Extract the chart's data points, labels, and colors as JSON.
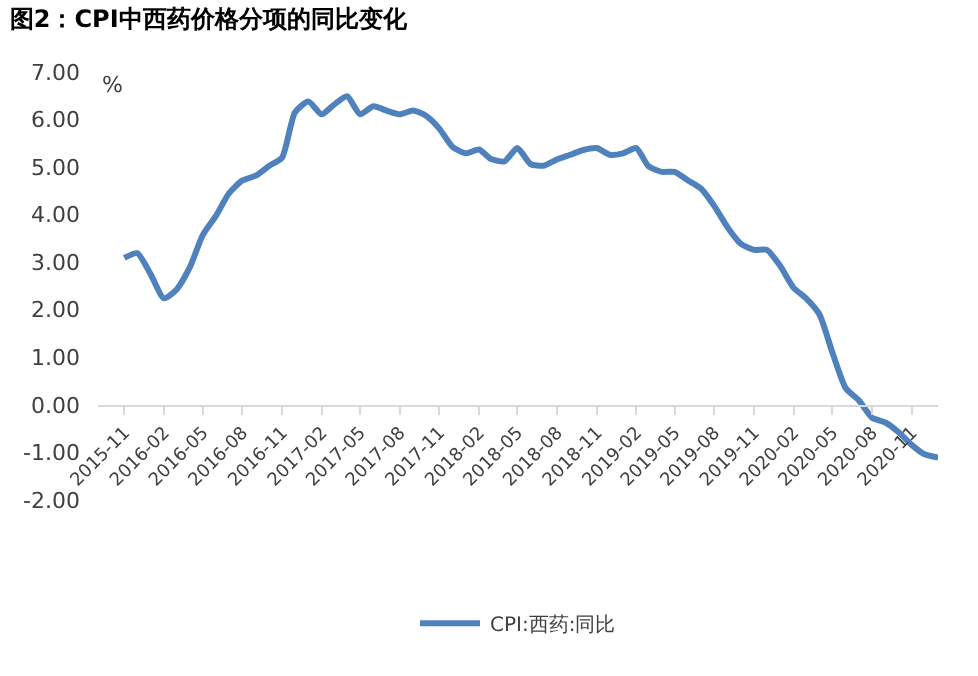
{
  "chart_data": {
    "type": "line",
    "title": "图2：CPI中西药价格分项的同比变化",
    "ylabel": "%",
    "x": [
      "2015-11",
      "2015-12",
      "2016-01",
      "2016-02",
      "2016-03",
      "2016-04",
      "2016-05",
      "2016-06",
      "2016-07",
      "2016-08",
      "2016-09",
      "2016-10",
      "2016-11",
      "2016-12",
      "2017-01",
      "2017-02",
      "2017-03",
      "2017-04",
      "2017-05",
      "2017-06",
      "2017-07",
      "2017-08",
      "2017-09",
      "2017-10",
      "2017-11",
      "2017-12",
      "2018-01",
      "2018-02",
      "2018-03",
      "2018-04",
      "2018-05",
      "2018-06",
      "2018-07",
      "2018-08",
      "2018-09",
      "2018-10",
      "2018-11",
      "2018-12",
      "2019-01",
      "2019-02",
      "2019-03",
      "2019-04",
      "2019-05",
      "2019-06",
      "2019-07",
      "2019-08",
      "2019-09",
      "2019-10",
      "2019-11",
      "2019-12",
      "2020-01",
      "2020-02",
      "2020-03",
      "2020-04",
      "2020-05",
      "2020-06",
      "2020-07",
      "2020-08",
      "2020-09",
      "2020-10",
      "2020-11",
      "2020-12",
      "2021-01"
    ],
    "series": [
      {
        "name": "CPI:西药:同比",
        "color": "#4f81bd",
        "values": [
          3.09,
          3.19,
          2.75,
          2.24,
          2.42,
          2.89,
          3.57,
          3.98,
          4.45,
          4.72,
          4.82,
          5.02,
          5.2,
          6.15,
          6.38,
          6.11,
          6.31,
          6.49,
          6.11,
          6.28,
          6.19,
          6.11,
          6.19,
          6.08,
          5.81,
          5.43,
          5.29,
          5.37,
          5.17,
          5.12,
          5.4,
          5.06,
          5.03,
          5.16,
          5.26,
          5.36,
          5.4,
          5.26,
          5.29,
          5.4,
          5.02,
          4.9,
          4.9,
          4.72,
          4.55,
          4.18,
          3.73,
          3.39,
          3.26,
          3.26,
          2.92,
          2.46,
          2.24,
          1.9,
          1.1,
          0.35,
          0.1,
          -0.27,
          -0.37,
          -0.57,
          -0.84,
          -1.04,
          -1.11
        ]
      }
    ],
    "xlim": [
      "2015-09",
      "2021-01"
    ],
    "xticks": [
      "2015-11",
      "2016-02",
      "2016-05",
      "2016-08",
      "2016-11",
      "2017-02",
      "2017-05",
      "2017-08",
      "2017-11",
      "2018-02",
      "2018-05",
      "2018-08",
      "2018-11",
      "2019-02",
      "2019-05",
      "2019-08",
      "2019-11",
      "2020-02",
      "2020-05",
      "2020-08",
      "2020-11"
    ],
    "ylim": [
      -2,
      7
    ],
    "yticks": [
      {
        "value": -2,
        "label": "-2.00"
      },
      {
        "value": -1,
        "label": "-1.00"
      },
      {
        "value": 0,
        "label": "0.00"
      },
      {
        "value": 1,
        "label": "1.00"
      },
      {
        "value": 2,
        "label": "2.00"
      },
      {
        "value": 3,
        "label": "3.00"
      },
      {
        "value": 4,
        "label": "4.00"
      },
      {
        "value": 5,
        "label": "5.00"
      },
      {
        "value": 6,
        "label": "6.00"
      },
      {
        "value": 7,
        "label": "7.00"
      }
    ],
    "legend": "bottom",
    "marker": "none",
    "line_style": "solid"
  }
}
